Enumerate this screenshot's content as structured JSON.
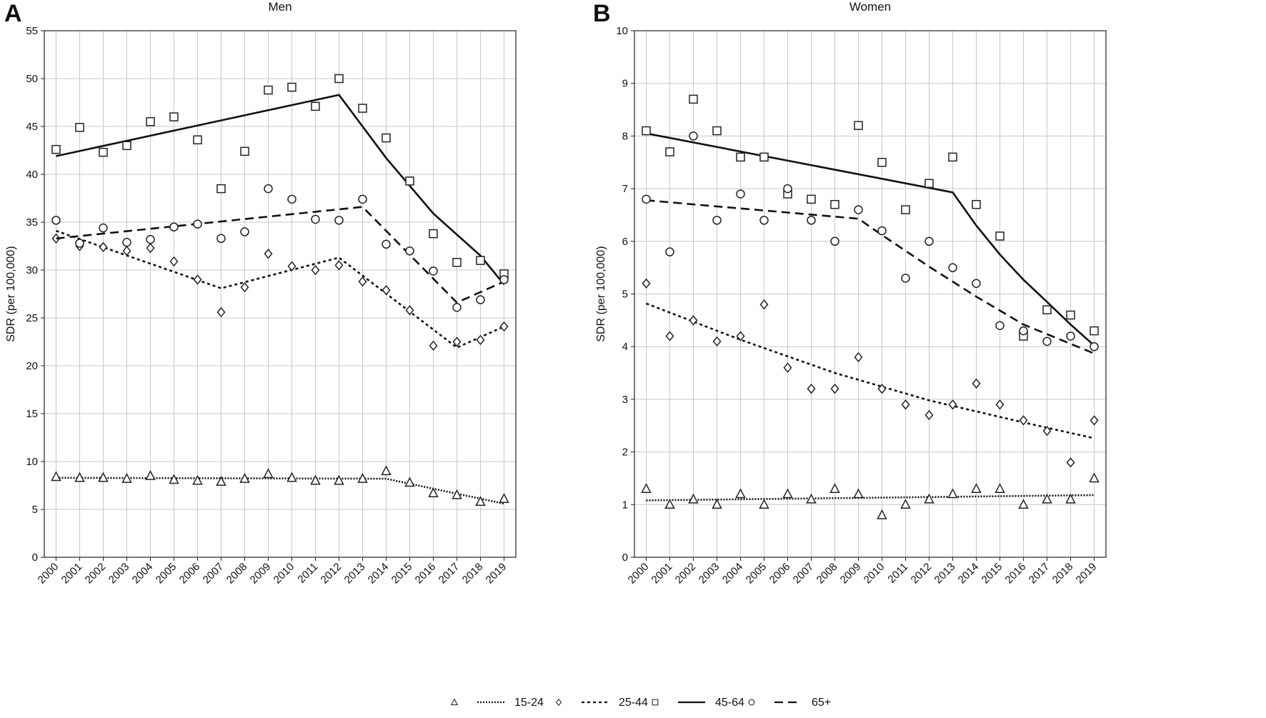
{
  "legend": [
    {
      "group": "15-24",
      "marker": "triangle",
      "line": "dotted-fine"
    },
    {
      "group": "25-44",
      "marker": "diamond",
      "line": "dotted"
    },
    {
      "group": "45-64",
      "marker": "square",
      "line": "solid"
    },
    {
      "group": "65+",
      "marker": "circle",
      "line": "dashed"
    }
  ],
  "chart_data": [
    {
      "panel": "A",
      "title": "Men",
      "type": "scatter",
      "ylabel": "SDR (per 100,000)",
      "xlabel": "",
      "ylim": [
        0,
        55
      ],
      "yticks": [
        0,
        5,
        10,
        15,
        20,
        25,
        30,
        35,
        40,
        45,
        50,
        55
      ],
      "grid": true,
      "x": [
        2000,
        2001,
        2002,
        2003,
        2004,
        2005,
        2006,
        2007,
        2008,
        2009,
        2010,
        2011,
        2012,
        2013,
        2014,
        2015,
        2016,
        2017,
        2018,
        2019
      ],
      "series": [
        {
          "name": "15-24",
          "marker": "triangle",
          "line": "dotted-fine",
          "values": [
            8.4,
            8.3,
            8.3,
            8.2,
            8.5,
            8.1,
            8.0,
            7.9,
            8.2,
            8.7,
            8.3,
            8.0,
            8.0,
            8.2,
            9.0,
            7.8,
            6.7,
            6.5,
            5.8,
            6.1
          ],
          "fit": [
            [
              2000,
              8.3
            ],
            [
              2014,
              8.2
            ],
            [
              2019,
              5.6
            ]
          ]
        },
        {
          "name": "25-44",
          "marker": "diamond",
          "line": "dotted",
          "values": [
            33.3,
            32.5,
            32.4,
            32.0,
            32.3,
            30.9,
            29.0,
            25.6,
            28.2,
            31.7,
            30.4,
            30.0,
            30.5,
            28.8,
            27.9,
            25.8,
            22.1,
            22.5,
            22.7,
            24.1
          ],
          "fit": [
            [
              2000,
              34.1
            ],
            [
              2007,
              28.1
            ],
            [
              2012,
              31.3
            ],
            [
              2017,
              21.9
            ],
            [
              2019,
              24.1
            ]
          ]
        },
        {
          "name": "45-64",
          "marker": "square",
          "line": "solid",
          "values": [
            42.6,
            44.9,
            42.3,
            43.0,
            45.5,
            46.0,
            43.6,
            38.5,
            42.4,
            48.8,
            49.1,
            47.1,
            50.0,
            46.9,
            43.8,
            39.3,
            33.8,
            30.8,
            31.0,
            29.6
          ],
          "fit": [
            [
              2000,
              41.9
            ],
            [
              2012,
              48.3
            ],
            [
              2014,
              41.7
            ],
            [
              2016,
              35.9
            ],
            [
              2018,
              31.5
            ],
            [
              2019,
              28.5
            ]
          ]
        },
        {
          "name": "65+",
          "marker": "circle",
          "line": "dashed",
          "values": [
            35.2,
            32.8,
            34.4,
            32.9,
            33.2,
            34.5,
            34.8,
            33.3,
            34.0,
            38.5,
            37.4,
            35.3,
            35.2,
            37.4,
            32.7,
            32.0,
            29.9,
            26.1,
            26.9,
            29.0
          ],
          "fit": [
            [
              2000,
              33.3
            ],
            [
              2013,
              36.6
            ],
            [
              2017,
              26.6
            ],
            [
              2019,
              28.8
            ]
          ]
        }
      ]
    },
    {
      "panel": "B",
      "title": "Women",
      "type": "scatter",
      "ylabel": "SDR (per 100,000)",
      "xlabel": "",
      "ylim": [
        0,
        10
      ],
      "yticks": [
        0,
        1,
        2,
        3,
        4,
        5,
        6,
        7,
        8,
        9,
        10
      ],
      "grid": true,
      "x": [
        2000,
        2001,
        2002,
        2003,
        2004,
        2005,
        2006,
        2007,
        2008,
        2009,
        2010,
        2011,
        2012,
        2013,
        2014,
        2015,
        2016,
        2017,
        2018,
        2019
      ],
      "series": [
        {
          "name": "15-24",
          "marker": "triangle",
          "line": "dotted-fine",
          "values": [
            1.3,
            1.0,
            1.1,
            1.0,
            1.2,
            1.0,
            1.2,
            1.1,
            1.3,
            1.2,
            0.8,
            1.0,
            1.1,
            1.2,
            1.3,
            1.3,
            1.0,
            1.1,
            1.1,
            1.5
          ],
          "fit": [
            [
              2000,
              1.08
            ],
            [
              2019,
              1.18
            ]
          ]
        },
        {
          "name": "25-44",
          "marker": "diamond",
          "line": "dotted",
          "values": [
            5.2,
            4.2,
            4.5,
            4.1,
            4.2,
            4.8,
            3.6,
            3.2,
            3.2,
            3.8,
            3.2,
            2.9,
            2.7,
            2.9,
            3.3,
            2.9,
            2.6,
            2.4,
            1.8,
            2.6
          ],
          "fit": [
            [
              2000,
              4.82
            ],
            [
              2004,
              4.13
            ],
            [
              2008,
              3.5
            ],
            [
              2012,
              2.98
            ],
            [
              2016,
              2.56
            ],
            [
              2019,
              2.26
            ]
          ]
        },
        {
          "name": "45-64",
          "marker": "square",
          "line": "solid",
          "values": [
            8.1,
            7.7,
            8.7,
            8.1,
            7.6,
            7.6,
            6.9,
            6.8,
            6.7,
            8.2,
            7.5,
            6.6,
            7.1,
            7.6,
            6.7,
            6.1,
            4.2,
            4.7,
            4.6,
            4.3
          ],
          "fit": [
            [
              2000,
              8.05
            ],
            [
              2013,
              6.93
            ],
            [
              2014,
              6.3
            ],
            [
              2015,
              5.75
            ],
            [
              2016,
              5.27
            ],
            [
              2017,
              4.85
            ],
            [
              2018,
              4.42
            ],
            [
              2019,
              4.02
            ]
          ]
        },
        {
          "name": "65+",
          "marker": "circle",
          "line": "dashed",
          "values": [
            6.8,
            5.8,
            8.0,
            6.4,
            6.9,
            6.4,
            7.0,
            6.4,
            6.0,
            6.6,
            6.2,
            5.3,
            6.0,
            5.5,
            5.2,
            4.4,
            4.3,
            4.1,
            4.2,
            4.0
          ],
          "fit": [
            [
              2000,
              6.78
            ],
            [
              2009,
              6.43
            ],
            [
              2010,
              6.12
            ],
            [
              2012,
              5.52
            ],
            [
              2014,
              4.95
            ],
            [
              2016,
              4.42
            ],
            [
              2019,
              3.87
            ]
          ]
        }
      ]
    }
  ]
}
